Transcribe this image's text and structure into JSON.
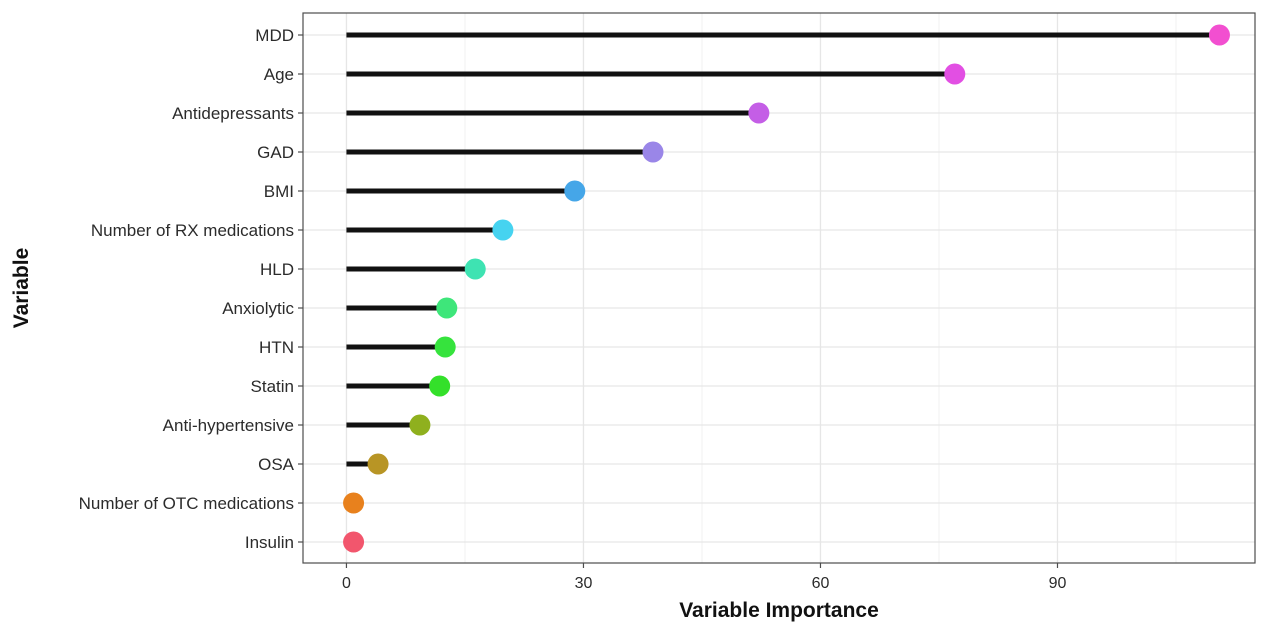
{
  "chart_data": {
    "type": "lollipop",
    "xlabel": "Variable Importance",
    "ylabel": "Variable",
    "xlim": [
      -5.5,
      115
    ],
    "xticks": [
      0,
      30,
      60,
      90
    ],
    "tick_labels": [
      "0",
      "30",
      "60",
      "90"
    ],
    "grid": true,
    "legend": "none",
    "points": [
      {
        "label": "MDD",
        "value": 110.5,
        "color": "#f24fd0"
      },
      {
        "label": "Age",
        "value": 77.0,
        "color": "#e24fe3"
      },
      {
        "label": "Antidepressants",
        "value": 52.2,
        "color": "#c45ee6"
      },
      {
        "label": "GAD",
        "value": 38.8,
        "color": "#9a86e8"
      },
      {
        "label": "BMI",
        "value": 28.9,
        "color": "#45a6e8"
      },
      {
        "label": "Number of RX medications",
        "value": 19.8,
        "color": "#46d3f0"
      },
      {
        "label": "HLD",
        "value": 16.3,
        "color": "#3ee3b2"
      },
      {
        "label": "Anxiolytic",
        "value": 12.7,
        "color": "#3ee67a"
      },
      {
        "label": "HTN",
        "value": 12.5,
        "color": "#36e33d"
      },
      {
        "label": "Statin",
        "value": 11.8,
        "color": "#34e02a"
      },
      {
        "label": "Anti-hypertensive",
        "value": 9.3,
        "color": "#8fb01e"
      },
      {
        "label": "OSA",
        "value": 4.0,
        "color": "#b89525"
      },
      {
        "label": "Number of OTC medications",
        "value": 0.9,
        "color": "#e8811d"
      },
      {
        "label": "Insulin",
        "value": 0.9,
        "color": "#f2566d"
      }
    ]
  }
}
